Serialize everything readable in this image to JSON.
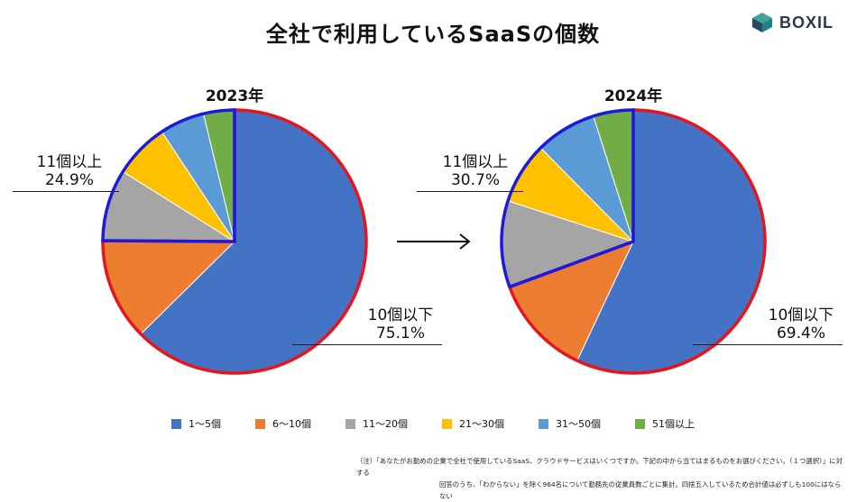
{
  "title": "全社で利用しているSaaSの個数",
  "logo": {
    "text": "BOXIL"
  },
  "colors": {
    "blue": "#4472c4",
    "orange": "#ed7d31",
    "gray": "#a5a5a5",
    "yellow": "#ffc000",
    "lightblue": "#5b9bd5",
    "green": "#70ad47",
    "highlight_red": "#e8141c",
    "highlight_blue": "#1a1ae0"
  },
  "chart_data": [
    {
      "type": "pie",
      "title": "2023年",
      "categories": [
        "1〜5個",
        "6〜10個",
        "11〜20個",
        "21〜30個",
        "31〜50個",
        "51個以上"
      ],
      "values": [
        62.6,
        12.5,
        8.8,
        6.8,
        5.5,
        3.8
      ],
      "start_angle_deg": 0,
      "direction": "clockwise",
      "groups": [
        {
          "label": "10個以下",
          "value": "75.1%",
          "members": [
            0,
            1
          ]
        },
        {
          "label": "11個以上",
          "value": "24.9%",
          "members": [
            2,
            3,
            4,
            5
          ]
        }
      ]
    },
    {
      "type": "pie",
      "title": "2024年",
      "categories": [
        "1〜5個",
        "6〜10個",
        "11〜20個",
        "21〜30個",
        "31〜50個",
        "51個以上"
      ],
      "values": [
        57.0,
        12.4,
        10.6,
        7.6,
        7.5,
        4.9
      ],
      "start_angle_deg": 0,
      "direction": "clockwise",
      "groups": [
        {
          "label": "10個以下",
          "value": "69.4%",
          "members": [
            0,
            1
          ]
        },
        {
          "label": "11個以上",
          "value": "30.7%",
          "members": [
            2,
            3,
            4,
            5
          ]
        }
      ]
    }
  ],
  "legend": [
    {
      "label": "1〜5個",
      "color": "#4472c4"
    },
    {
      "label": "6〜10個",
      "color": "#ed7d31"
    },
    {
      "label": "11〜20個",
      "color": "#a5a5a5"
    },
    {
      "label": "21〜30個",
      "color": "#ffc000"
    },
    {
      "label": "31〜50個",
      "color": "#5b9bd5"
    },
    {
      "label": "51個以上",
      "color": "#70ad47"
    }
  ],
  "note": {
    "line1": "（注）「あなたがお勤めの企業で全社で使用しているSaaS、クラウドサービスはいくつですか。下記の中から当てはまるものをお選びください。（１つ選択）」に対する",
    "line2": "回答のうち、「わからない」を除く964名について勤務先の従業員数ごとに集計。四捨五入しているため合計値は必ずしも100にはならない"
  }
}
